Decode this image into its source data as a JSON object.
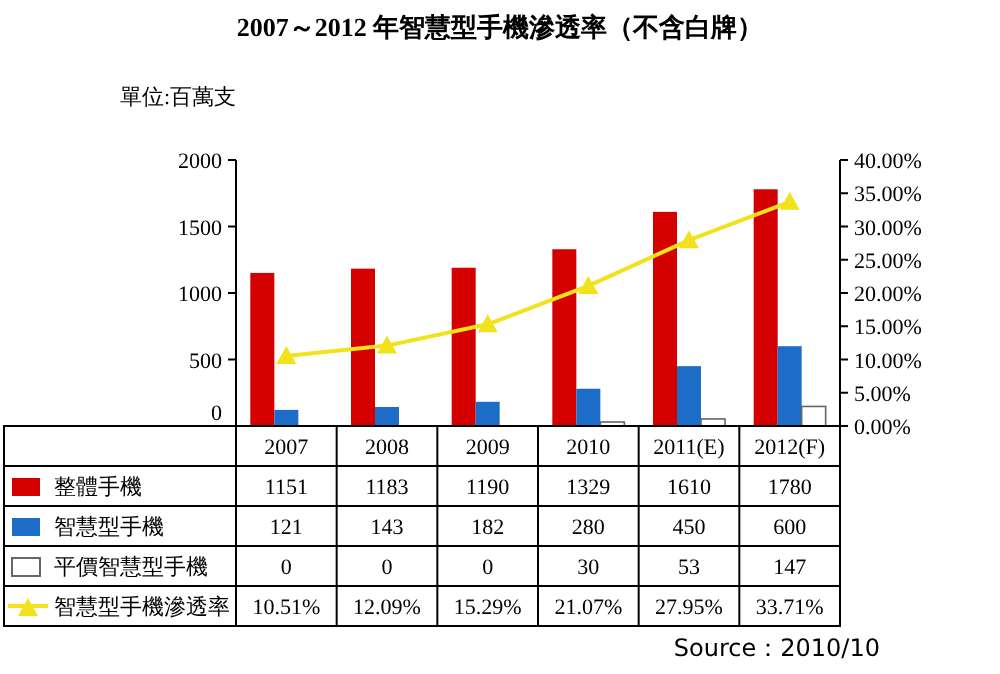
{
  "chart_data": {
    "type": "bar",
    "title": "2007～2012 年智慧型手機滲透率（不含白牌）",
    "ylabel": "單位:百萬支",
    "categories": [
      "2007",
      "2008",
      "2009",
      "2010",
      "2011(E)",
      "2012(F)"
    ],
    "series": [
      {
        "name": "整體手機",
        "color": "#d40000",
        "values": [
          1151,
          1183,
          1190,
          1329,
          1610,
          1780
        ],
        "value_labels": [
          "1151",
          "1183",
          "1190",
          "1329",
          "1610",
          "1780"
        ]
      },
      {
        "name": "智慧型手機",
        "color": "#1c6cc8",
        "values": [
          121,
          143,
          182,
          280,
          450,
          600
        ],
        "value_labels": [
          "121",
          "143",
          "182",
          "280",
          "450",
          "600"
        ]
      },
      {
        "name": "平價智慧型手機",
        "color": "#ffffff",
        "values": [
          0,
          0,
          0,
          30,
          53,
          147
        ],
        "value_labels": [
          "0",
          "0",
          "0",
          "30",
          "53",
          "147"
        ]
      },
      {
        "name": "智慧型手機滲透率",
        "color": "#f2e21c",
        "type": "line",
        "axis": "y2",
        "marker": "triangle",
        "values": [
          10.51,
          12.09,
          15.29,
          21.07,
          27.95,
          33.71
        ],
        "value_labels": [
          "10.51%",
          "12.09%",
          "15.29%",
          "21.07%",
          "27.95%",
          "33.71%"
        ]
      }
    ],
    "ylim": [
      0,
      2000
    ],
    "yticks": [
      0,
      500,
      1000,
      1500,
      2000
    ],
    "y2lim": [
      0,
      40
    ],
    "y2ticks": [
      {
        "value": 0,
        "label": "0.00%"
      },
      {
        "value": 5,
        "label": "5.00%"
      },
      {
        "value": 10,
        "label": "10.00%"
      },
      {
        "value": 15,
        "label": "15.00%"
      },
      {
        "value": 20,
        "label": "20.00%"
      },
      {
        "value": 25,
        "label": "25.00%"
      },
      {
        "value": 30,
        "label": "30.00%"
      },
      {
        "value": 35,
        "label": "35.00%"
      },
      {
        "value": 40,
        "label": "40.00%"
      }
    ],
    "legend": "bottom",
    "annotations": [
      "Source：2010/10"
    ]
  }
}
